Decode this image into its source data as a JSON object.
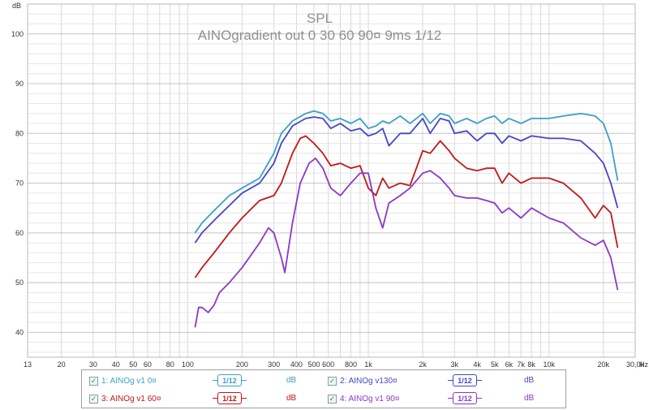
{
  "chart_data": {
    "type": "line",
    "title": "SPL",
    "subtitle": "AINOgradient out 0 30 60 90¤ 9ms 1/12",
    "ylabel": "dB",
    "xunit": "Hz",
    "ylim": [
      35,
      106
    ],
    "xlim": [
      13,
      30000
    ],
    "xscale": "log",
    "grid": true,
    "yticks": [
      "40",
      "50",
      "60",
      "70",
      "80",
      "90",
      "100"
    ],
    "xticks": [
      {
        "v": 13,
        "label": "13"
      },
      {
        "v": 20,
        "label": "20"
      },
      {
        "v": 30,
        "label": "30"
      },
      {
        "v": 40,
        "label": "40"
      },
      {
        "v": 50,
        "label": "50"
      },
      {
        "v": 60,
        "label": "60"
      },
      {
        "v": 80,
        "label": "80"
      },
      {
        "v": 100,
        "label": "100"
      },
      {
        "v": 200,
        "label": "200"
      },
      {
        "v": 300,
        "label": "300"
      },
      {
        "v": 400,
        "label": "400"
      },
      {
        "v": 500,
        "label": "500"
      },
      {
        "v": 600,
        "label": "600"
      },
      {
        "v": 800,
        "label": "800"
      },
      {
        "v": 1000,
        "label": "1k"
      },
      {
        "v": 2000,
        "label": "2k"
      },
      {
        "v": 3000,
        "label": "3k"
      },
      {
        "v": 4000,
        "label": "4k"
      },
      {
        "v": 5000,
        "label": "5k"
      },
      {
        "v": 6000,
        "label": "6k"
      },
      {
        "v": 7000,
        "label": "7k"
      },
      {
        "v": 8000,
        "label": "8k"
      },
      {
        "v": 10000,
        "label": "10k"
      },
      {
        "v": 20000,
        "label": "20k"
      },
      {
        "v": 30000,
        "label": "30,0k"
      }
    ],
    "series": [
      {
        "name": "AINOg v1 0¤",
        "color": "#3aa0c8",
        "points": [
          [
            110,
            60
          ],
          [
            120,
            62
          ],
          [
            140,
            64.5
          ],
          [
            170,
            67.5
          ],
          [
            200,
            69
          ],
          [
            250,
            71
          ],
          [
            300,
            76
          ],
          [
            330,
            80
          ],
          [
            380,
            82.5
          ],
          [
            450,
            84
          ],
          [
            500,
            84.5
          ],
          [
            560,
            84
          ],
          [
            620,
            82.5
          ],
          [
            700,
            83
          ],
          [
            800,
            82
          ],
          [
            900,
            83
          ],
          [
            1000,
            81
          ],
          [
            1100,
            81.5
          ],
          [
            1200,
            82.5
          ],
          [
            1300,
            82
          ],
          [
            1500,
            83.5
          ],
          [
            1700,
            82
          ],
          [
            2000,
            84
          ],
          [
            2200,
            82
          ],
          [
            2500,
            84
          ],
          [
            2800,
            83.5
          ],
          [
            3000,
            82
          ],
          [
            3500,
            83
          ],
          [
            4000,
            82
          ],
          [
            4500,
            83
          ],
          [
            5000,
            83.5
          ],
          [
            5500,
            82
          ],
          [
            6000,
            83
          ],
          [
            7000,
            82
          ],
          [
            8000,
            83
          ],
          [
            10000,
            83
          ],
          [
            12000,
            83.5
          ],
          [
            15000,
            84
          ],
          [
            18000,
            83.5
          ],
          [
            20000,
            82
          ],
          [
            22000,
            78
          ],
          [
            24000,
            70.5
          ]
        ]
      },
      {
        "name": "AINOg v130¤",
        "color": "#4545c8",
        "points": [
          [
            110,
            58
          ],
          [
            120,
            60
          ],
          [
            140,
            62.5
          ],
          [
            170,
            65.5
          ],
          [
            200,
            68
          ],
          [
            250,
            70
          ],
          [
            300,
            74
          ],
          [
            330,
            78
          ],
          [
            380,
            81.5
          ],
          [
            450,
            83
          ],
          [
            500,
            83.3
          ],
          [
            560,
            83
          ],
          [
            620,
            81
          ],
          [
            700,
            82
          ],
          [
            800,
            80.5
          ],
          [
            900,
            81
          ],
          [
            1000,
            79.5
          ],
          [
            1100,
            80
          ],
          [
            1200,
            81
          ],
          [
            1300,
            77.5
          ],
          [
            1500,
            80
          ],
          [
            1700,
            80
          ],
          [
            2000,
            83
          ],
          [
            2200,
            80
          ],
          [
            2500,
            83
          ],
          [
            2800,
            82.5
          ],
          [
            3000,
            80
          ],
          [
            3500,
            80.5
          ],
          [
            4000,
            78.5
          ],
          [
            4500,
            80
          ],
          [
            5000,
            80
          ],
          [
            5500,
            78
          ],
          [
            6000,
            79.5
          ],
          [
            7000,
            78.5
          ],
          [
            8000,
            79.5
          ],
          [
            10000,
            79
          ],
          [
            12000,
            79
          ],
          [
            15000,
            78.5
          ],
          [
            18000,
            76
          ],
          [
            20000,
            74
          ],
          [
            22000,
            70
          ],
          [
            24000,
            65
          ]
        ]
      },
      {
        "name": "AINOg v1 60¤",
        "color": "#c01818",
        "points": [
          [
            110,
            51
          ],
          [
            120,
            53
          ],
          [
            140,
            56
          ],
          [
            170,
            60
          ],
          [
            200,
            63
          ],
          [
            250,
            66.5
          ],
          [
            300,
            67.5
          ],
          [
            330,
            70
          ],
          [
            380,
            76
          ],
          [
            420,
            79
          ],
          [
            450,
            79.5
          ],
          [
            500,
            78
          ],
          [
            560,
            76
          ],
          [
            620,
            73.5
          ],
          [
            700,
            74
          ],
          [
            800,
            73
          ],
          [
            900,
            73.5
          ],
          [
            1000,
            69
          ],
          [
            1100,
            67.5
          ],
          [
            1200,
            71
          ],
          [
            1300,
            69
          ],
          [
            1500,
            70
          ],
          [
            1700,
            69.5
          ],
          [
            2000,
            76.5
          ],
          [
            2200,
            76
          ],
          [
            2500,
            78.5
          ],
          [
            2800,
            76.5
          ],
          [
            3000,
            75
          ],
          [
            3500,
            73
          ],
          [
            4000,
            72.5
          ],
          [
            4500,
            73
          ],
          [
            5000,
            73
          ],
          [
            5500,
            70
          ],
          [
            6000,
            72
          ],
          [
            7000,
            70
          ],
          [
            8000,
            71
          ],
          [
            10000,
            71
          ],
          [
            12000,
            70
          ],
          [
            15000,
            67
          ],
          [
            18000,
            63
          ],
          [
            20000,
            65.5
          ],
          [
            22000,
            64
          ],
          [
            24000,
            57
          ]
        ]
      },
      {
        "name": "AINOg v1 90¤",
        "color": "#8a38c8",
        "points": [
          [
            110,
            41
          ],
          [
            115,
            45
          ],
          [
            120,
            45
          ],
          [
            130,
            44
          ],
          [
            140,
            45.5
          ],
          [
            150,
            48
          ],
          [
            170,
            50
          ],
          [
            200,
            53
          ],
          [
            250,
            58
          ],
          [
            280,
            61
          ],
          [
            300,
            60
          ],
          [
            330,
            55
          ],
          [
            345,
            52
          ],
          [
            380,
            62
          ],
          [
            420,
            70
          ],
          [
            470,
            74
          ],
          [
            510,
            75
          ],
          [
            560,
            73
          ],
          [
            620,
            69
          ],
          [
            700,
            67.5
          ],
          [
            800,
            70
          ],
          [
            900,
            72
          ],
          [
            1000,
            72
          ],
          [
            1100,
            65
          ],
          [
            1200,
            61
          ],
          [
            1300,
            66
          ],
          [
            1500,
            67.5
          ],
          [
            1700,
            69
          ],
          [
            2000,
            72
          ],
          [
            2200,
            72.5
          ],
          [
            2500,
            71
          ],
          [
            2800,
            69
          ],
          [
            3000,
            67.5
          ],
          [
            3500,
            67
          ],
          [
            4000,
            67
          ],
          [
            4500,
            66.5
          ],
          [
            5000,
            66
          ],
          [
            5500,
            64
          ],
          [
            6000,
            65
          ],
          [
            7000,
            63
          ],
          [
            8000,
            65
          ],
          [
            10000,
            63
          ],
          [
            12000,
            62
          ],
          [
            15000,
            59
          ],
          [
            18000,
            57.5
          ],
          [
            20000,
            58.5
          ],
          [
            22000,
            55
          ],
          [
            24000,
            48.5
          ]
        ]
      }
    ]
  },
  "legend": {
    "items": [
      {
        "checked": true,
        "label": "1: AINOg v1 0¤",
        "smoothing": "1/12",
        "unit": "dB",
        "color": "#3aa0c8"
      },
      {
        "checked": true,
        "label": "2: AINOg v130¤",
        "smoothing": "1/12",
        "unit": "dB",
        "color": "#4545c8"
      },
      {
        "checked": true,
        "label": "3: AINOg v1 60¤",
        "smoothing": "1/12",
        "unit": "dB",
        "color": "#c01818"
      },
      {
        "checked": true,
        "label": "4: AINOg v1 90¤",
        "smoothing": "1/12",
        "unit": "dB",
        "color": "#8a38c8"
      }
    ]
  }
}
